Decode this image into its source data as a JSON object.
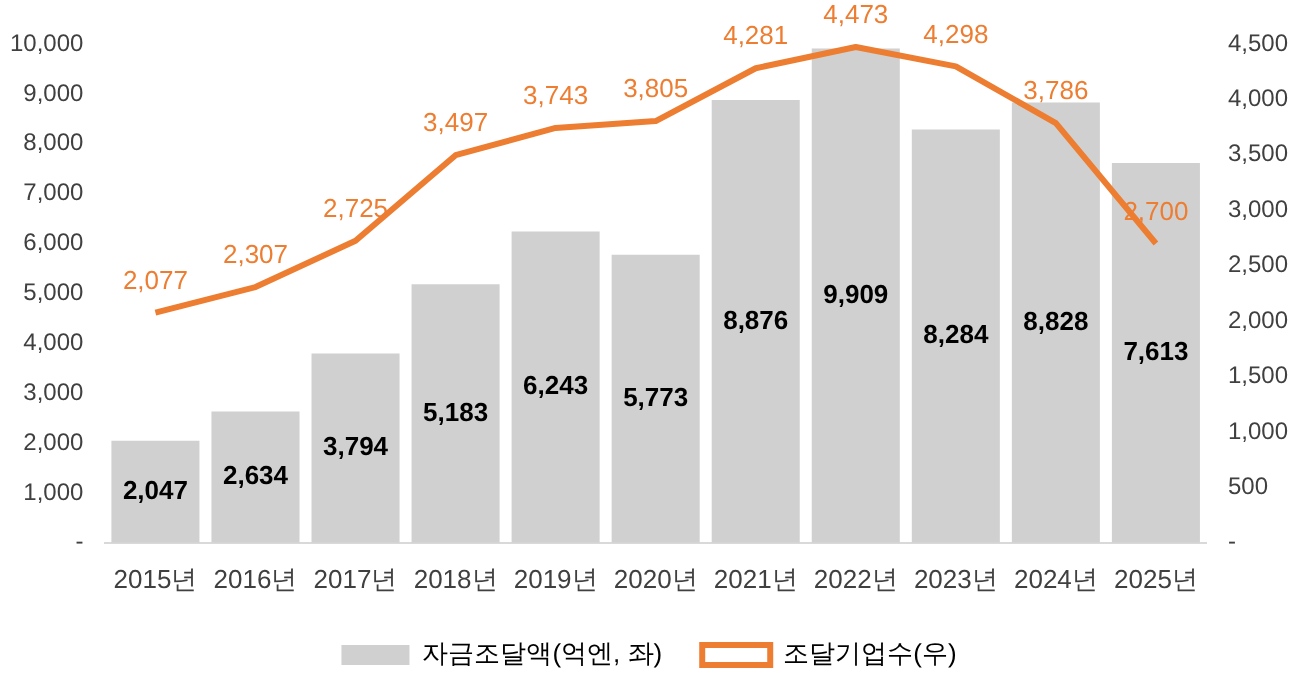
{
  "chart_data": {
    "type": "bar",
    "categories": [
      "2015년",
      "2016년",
      "2017년",
      "2018년",
      "2019년",
      "2020년",
      "2021년",
      "2022년",
      "2023년",
      "2024년",
      "2025년"
    ],
    "series": [
      {
        "name": "자금조달액(억엔, 좌)",
        "color": "#d0d0d0",
        "values": [
          2047,
          2634,
          3794,
          5183,
          6243,
          5773,
          8876,
          9909,
          8284,
          8828,
          7613
        ],
        "value_labels": [
          "2,047",
          "2,634",
          "3,794",
          "5,183",
          "6,243",
          "5,773",
          "8,876",
          "9,909",
          "8,284",
          "8,828",
          "7,613"
        ]
      },
      {
        "name": "조달기업수(우)",
        "type": "line",
        "axis": "y2",
        "color": "#ed7d31",
        "values": [
          2077,
          2307,
          2725,
          3497,
          3743,
          3805,
          4281,
          4473,
          4298,
          3786,
          2700
        ],
        "value_labels": [
          "2,077",
          "2,307",
          "2,725",
          "3,497",
          "3,743",
          "3,805",
          "4,281",
          "4,473",
          "4,298",
          "3,786",
          "2,700"
        ]
      }
    ],
    "ylim": [
      0,
      10000
    ],
    "yticks": [
      {
        "value": 0,
        "label": "-"
      },
      {
        "value": 1000,
        "label": "1,000"
      },
      {
        "value": 2000,
        "label": "2,000"
      },
      {
        "value": 3000,
        "label": "3,000"
      },
      {
        "value": 4000,
        "label": "4,000"
      },
      {
        "value": 5000,
        "label": "5,000"
      },
      {
        "value": 6000,
        "label": "6,000"
      },
      {
        "value": 7000,
        "label": "7,000"
      },
      {
        "value": 8000,
        "label": "8,000"
      },
      {
        "value": 9000,
        "label": "9,000"
      },
      {
        "value": 10000,
        "label": "10,000"
      }
    ],
    "y2lim": [
      0,
      4500
    ],
    "y2ticks": [
      {
        "value": 0,
        "label": "-"
      },
      500,
      {
        "value": 1000,
        "label": "1,000"
      },
      {
        "value": 1500,
        "label": "1,500"
      },
      {
        "value": 2000,
        "label": "2,000"
      },
      {
        "value": 2500,
        "label": "2,500"
      },
      {
        "value": 3000,
        "label": "3,000"
      },
      {
        "value": 3500,
        "label": "3,500"
      },
      {
        "value": 4000,
        "label": "4,000"
      },
      {
        "value": 4500,
        "label": "4,500"
      }
    ],
    "grid": false,
    "legend": "bottom",
    "marker": "none"
  }
}
